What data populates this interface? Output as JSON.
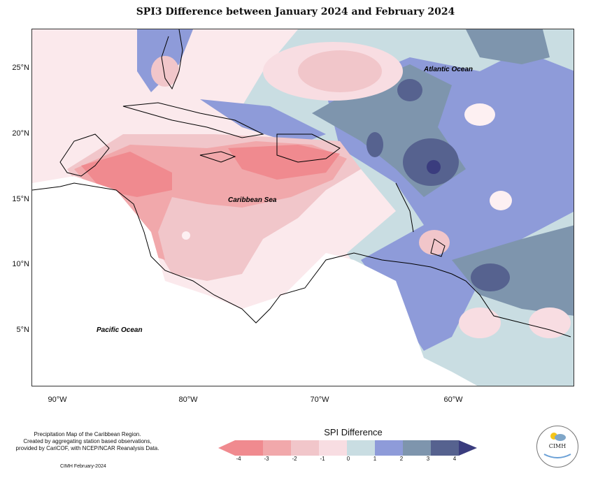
{
  "title": "SPI3 Difference between January 2024 and February 2024",
  "map": {
    "lat_labels": [
      "25°N",
      "20°N",
      "15°N",
      "10°N",
      "5°N"
    ],
    "lon_labels": [
      "90°W",
      "80°W",
      "70°W",
      "60°W"
    ],
    "place_labels": {
      "atlantic": "Atlantic Ocean",
      "caribbean": "Caribbean Sea",
      "pacific": "Pacific Ocean"
    }
  },
  "legend": {
    "title": "SPI Difference",
    "ticks": [
      "-4",
      "-3",
      "-2",
      "-1",
      "0",
      "1",
      "2",
      "3",
      "4"
    ],
    "colors": [
      "#f08a8f",
      "#f1a8ab",
      "#f1c6ca",
      "#f8dde2",
      "#fdf0f2",
      "#c9dde2",
      "#8e9bd9",
      "#7e95ad",
      "#56628f",
      "#3a3c7e"
    ]
  },
  "credits": {
    "line1": "Precipitation Map of the Caribbean Region.",
    "line2": "Created by aggregating station based observations,",
    "line3": "provided by CariCOF, with NCEP/NCAR Reanalysis Data.",
    "date": "CIMH February-2024"
  },
  "logo": {
    "text": "CIMH"
  }
}
